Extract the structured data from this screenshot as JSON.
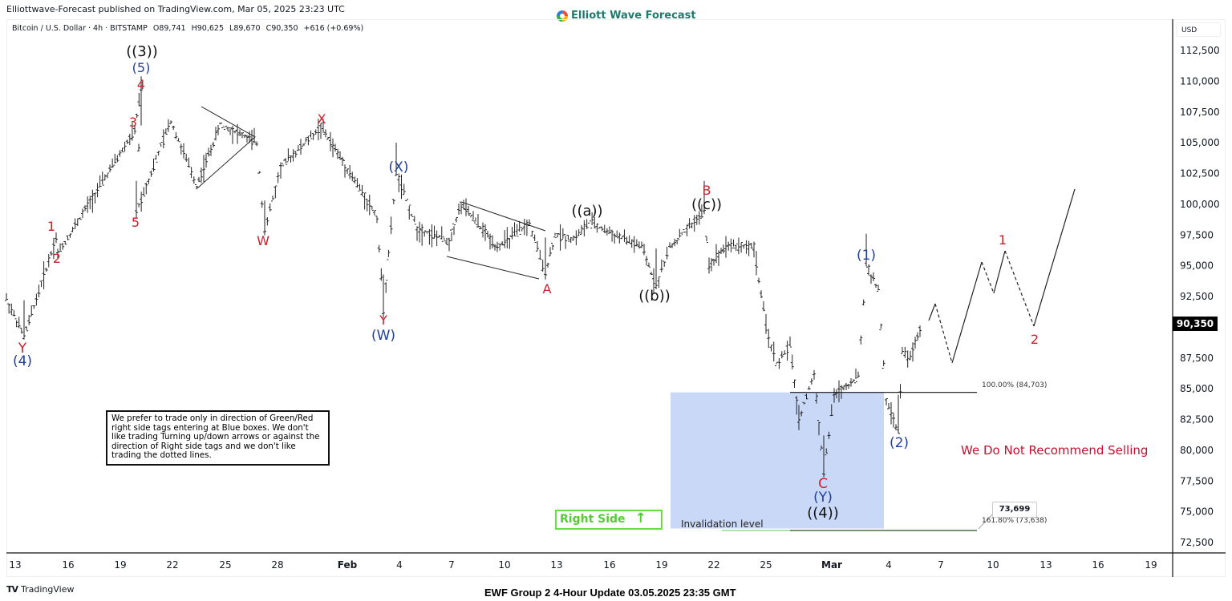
{
  "header": {
    "publisher": "Elliottwave-Forecast published on TradingView.com, Mar 05, 2025 23:23 UTC",
    "brand": "Elliott Wave Forecast",
    "symbol": "Bitcoin / U.S. Dollar · 4h · BITSTAMP",
    "open": "O89,741",
    "high": "H90,625",
    "low": "L89,670",
    "close": "C90,350",
    "change": "+616 (+0.69%)",
    "currency": "USD"
  },
  "price_axis": {
    "labels": [
      "112,500",
      "110,000",
      "107,500",
      "105,000",
      "102,500",
      "100,000",
      "97,500",
      "95,000",
      "92,500",
      "87,500",
      "85,000",
      "82,500",
      "80,000",
      "77,500",
      "75,000",
      "72,500"
    ],
    "current_price": "90,350",
    "current_price_bg": "#000000"
  },
  "time_axis": {
    "labels": [
      "13",
      "16",
      "19",
      "22",
      "25",
      "28",
      "Feb",
      "4",
      "7",
      "10",
      "13",
      "16",
      "19",
      "22",
      "25",
      "Mar",
      "4",
      "7",
      "10",
      "13",
      "16",
      "19"
    ]
  },
  "annotations": {
    "note": "We prefer to trade only in direction of Green/Red right side tags entering at Blue boxes. We don't like trading Turning up/down arrows or against the direction of Right side tags and we don't like trading the dotted lines.",
    "right_side": "Right Side",
    "right_side_arrow": "↑",
    "no_sell": "We Do Not Recommend Selling",
    "invalidation": "Invalidation level",
    "fib_100": "100.00% (84,703)",
    "fib_161": "161.80% (73,638)",
    "value_box": "73,699"
  },
  "footer": {
    "tv_logo": "TV",
    "tv_name": "TradingView",
    "title": "EWF Group 2 4-Hour Update 03.05.2025 23:35 GMT"
  },
  "colors": {
    "red_label": "#d0202a",
    "blue_label": "#1f3f9a",
    "black_label": "#111111",
    "blue_box": "#c9d8f7",
    "right_side_green": "#55cc33",
    "no_sell_red": "#c8102e"
  },
  "chart_data": {
    "type": "line",
    "title": "Bitcoin / U.S. Dollar · 4h · BITSTAMP",
    "xlabel": "",
    "ylabel": "USD",
    "ylim": [
      72500,
      112500
    ],
    "grid": false,
    "x": [
      "Jan 13",
      "Jan 15",
      "Jan 17",
      "Jan 20",
      "Jan 21",
      "Jan 23",
      "Jan 25",
      "Jan 27",
      "Jan 28",
      "Jan 31",
      "Feb 3",
      "Feb 4",
      "Feb 8",
      "Feb 12",
      "Feb 13",
      "Feb 15",
      "Feb 19",
      "Feb 21",
      "Feb 22",
      "Feb 24",
      "Feb 26",
      "Feb 28",
      "Mar 2",
      "Mar 4",
      "Mar 5"
    ],
    "series": [
      {
        "name": "BTCUSD approx swing closes",
        "values": [
          89200,
          97300,
          96000,
          109400,
          99400,
          106500,
          101500,
          105000,
          97800,
          106300,
          91300,
          102500,
          100000,
          94300,
          98500,
          96400,
          93400,
          99400,
          95000,
          96700,
          82200,
          78200,
          95100,
          81500,
          90350
        ]
      }
    ],
    "wave_labels": [
      {
        "label": "Y",
        "color": "red",
        "price": 89200
      },
      {
        "label": "(4)",
        "color": "blue",
        "price": 89200
      },
      {
        "label": "1",
        "color": "red",
        "price": 97300
      },
      {
        "label": "2",
        "color": "red",
        "price": 96000
      },
      {
        "label": "3",
        "color": "red",
        "price": 106000
      },
      {
        "label": "4",
        "color": "red",
        "price": 99400
      },
      {
        "label": "5",
        "color": "red",
        "price": 109400
      },
      {
        "label": "(5)",
        "color": "blue",
        "price": 109400
      },
      {
        "label": "((3))",
        "color": "black",
        "price": 109400
      },
      {
        "label": "W",
        "color": "red",
        "price": 97800
      },
      {
        "label": "X",
        "color": "red",
        "price": 106300
      },
      {
        "label": "Y",
        "color": "red",
        "price": 91300
      },
      {
        "label": "(W)",
        "color": "blue",
        "price": 91300
      },
      {
        "label": "(X)",
        "color": "blue",
        "price": 102500
      },
      {
        "label": "A",
        "color": "red",
        "price": 94300
      },
      {
        "label": "((a))",
        "color": "black",
        "price": 98500
      },
      {
        "label": "((b))",
        "color": "black",
        "price": 93400
      },
      {
        "label": "((c))",
        "color": "black",
        "price": 99400
      },
      {
        "label": "B",
        "color": "red",
        "price": 99400
      },
      {
        "label": "C",
        "color": "red",
        "price": 78200
      },
      {
        "label": "(Y)",
        "color": "blue",
        "price": 78200
      },
      {
        "label": "((4))",
        "color": "black",
        "price": 78200
      },
      {
        "label": "(1)",
        "color": "blue",
        "price": 95100
      },
      {
        "label": "(2)",
        "color": "blue",
        "price": 81500
      },
      {
        "label": "1",
        "color": "red",
        "price": 96400
      },
      {
        "label": "2",
        "color": "red",
        "price": 90200
      }
    ],
    "levels": [
      {
        "label": "100.00%",
        "value": 84703
      },
      {
        "label": "161.80%",
        "value": 73638
      }
    ],
    "blue_box": {
      "top": 84703,
      "bottom": 73638,
      "from": "Feb 19",
      "to": "Mar 4"
    },
    "projection": [
      91500,
      92000,
      87000,
      95300,
      93000,
      96400,
      90200,
      101200
    ]
  }
}
